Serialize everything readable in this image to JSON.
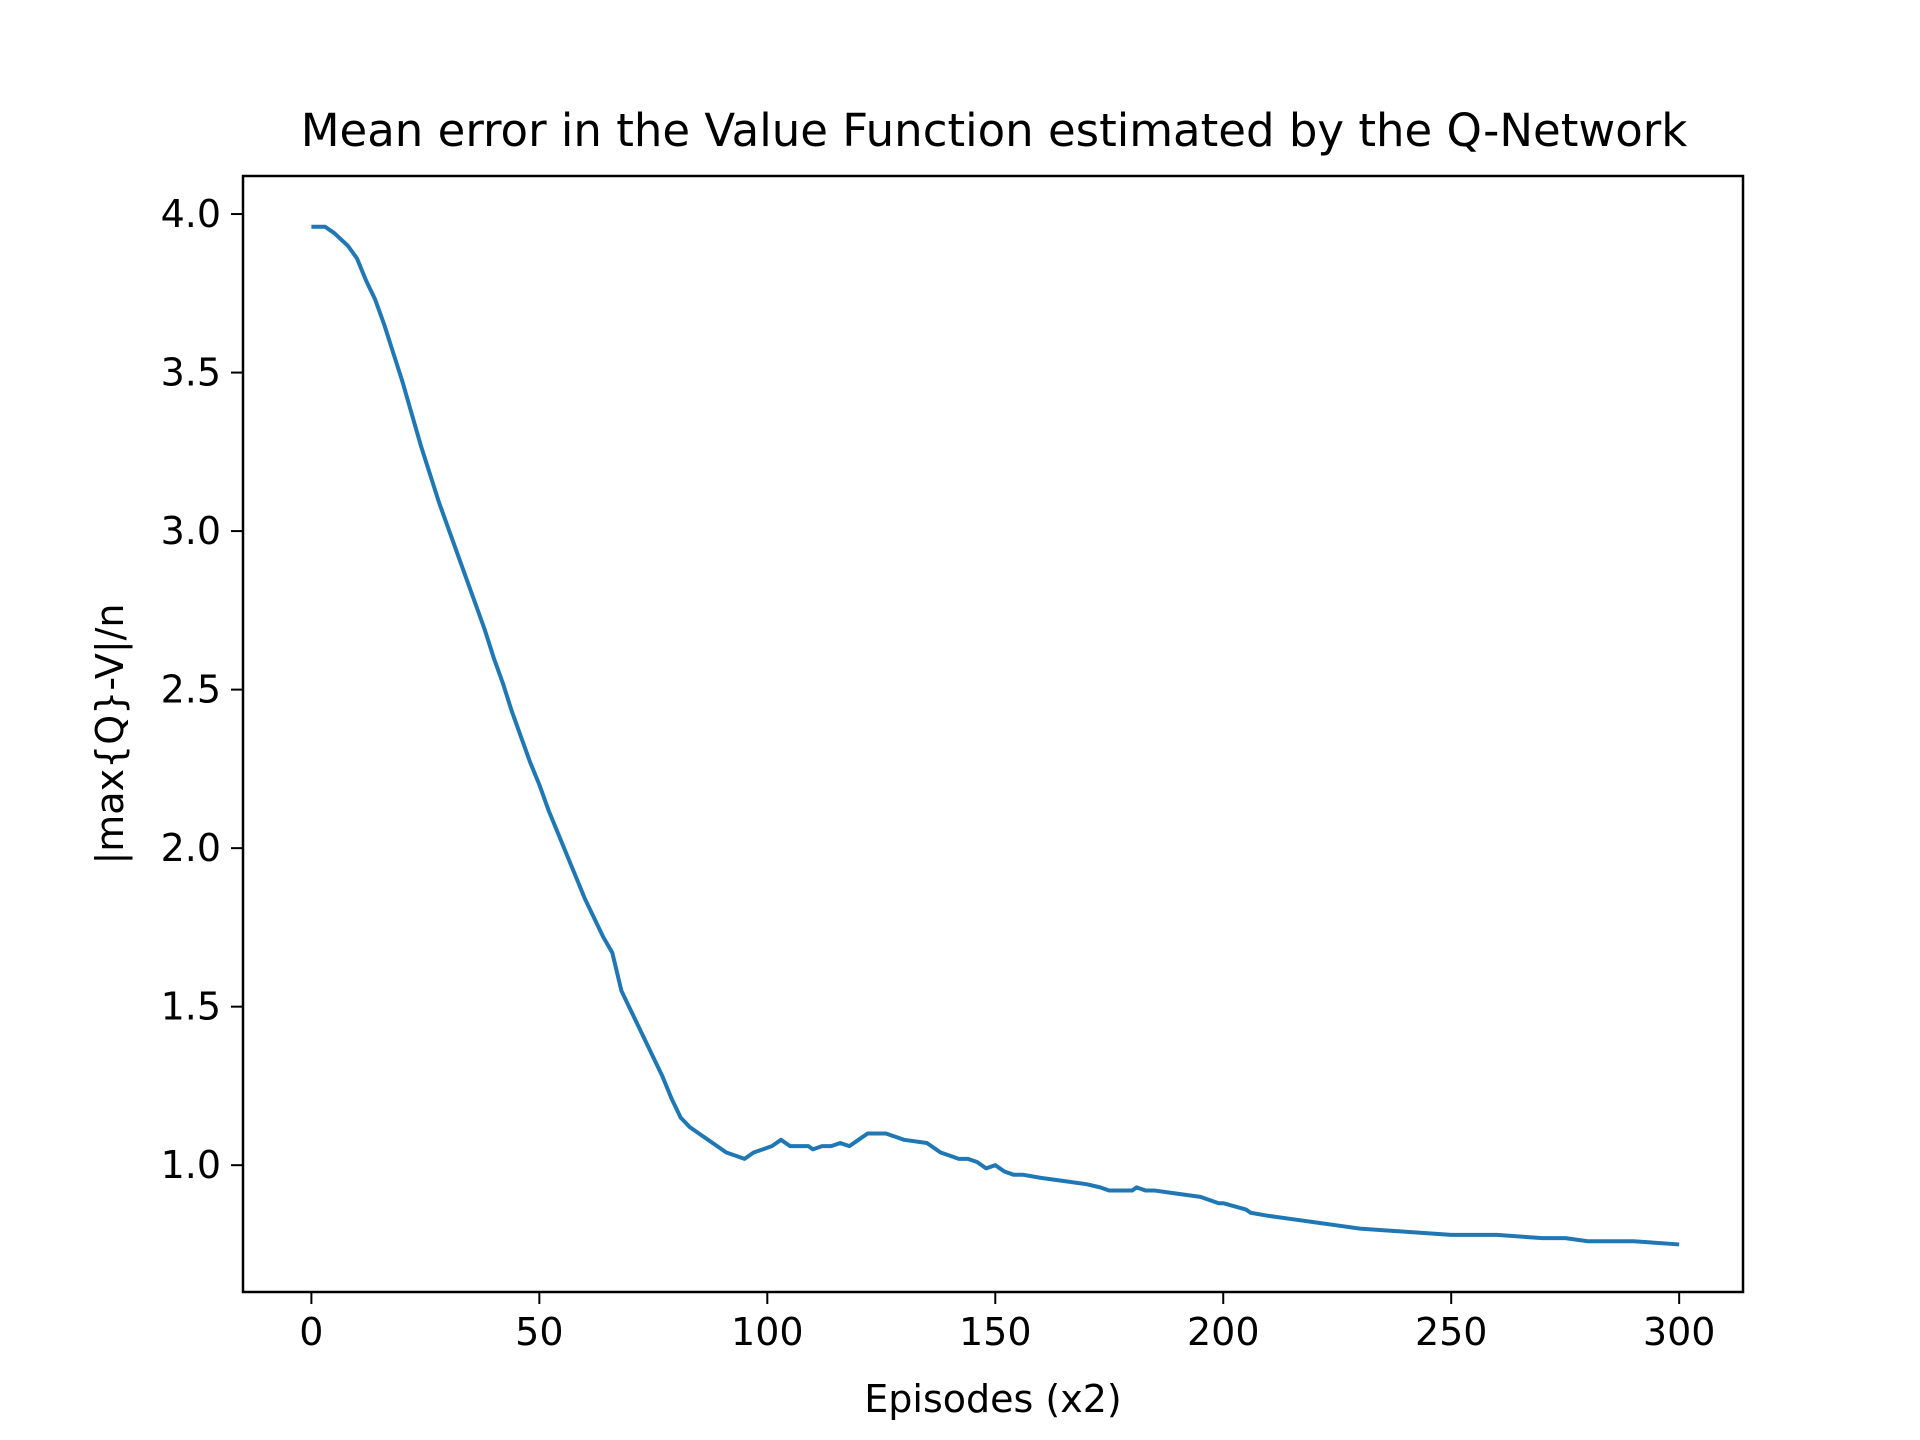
{
  "chart_data": {
    "type": "line",
    "title": "Mean error in the Value Function estimated by the Q-Network",
    "xlabel": "Episodes (x2)",
    "ylabel": "|max{Q}-V|/n",
    "xlim": [
      -15,
      314
    ],
    "ylim": [
      0.6,
      4.12
    ],
    "xticks": [
      0,
      50,
      100,
      150,
      200,
      250,
      300
    ],
    "xtick_labels": [
      "0",
      "50",
      "100",
      "150",
      "200",
      "250",
      "300"
    ],
    "yticks": [
      1.0,
      1.5,
      2.0,
      2.5,
      3.0,
      3.5,
      4.0
    ],
    "ytick_labels": [
      "1.0",
      "1.5",
      "2.0",
      "2.5",
      "3.0",
      "3.5",
      "4.0"
    ],
    "grid": false,
    "legend": null,
    "series": [
      {
        "color": "#1f77b4",
        "x": [
          0,
          3,
          5,
          8,
          10,
          12,
          14,
          16,
          18,
          20,
          22,
          24,
          26,
          28,
          30,
          32,
          34,
          36,
          38,
          40,
          42,
          44,
          46,
          48,
          50,
          52,
          54,
          56,
          58,
          60,
          62,
          64,
          66,
          68,
          70,
          72,
          73,
          75,
          77,
          79,
          81,
          83,
          85,
          87,
          89,
          91,
          93,
          95,
          97,
          99,
          101,
          103,
          105,
          107,
          109,
          110,
          112,
          114,
          116,
          118,
          120,
          122,
          124,
          126,
          128,
          130,
          135,
          138,
          140,
          142,
          144,
          146,
          148,
          150,
          152,
          154,
          156,
          160,
          165,
          170,
          173,
          175,
          180,
          181,
          183,
          185,
          190,
          195,
          199,
          200,
          205,
          206,
          210,
          215,
          220,
          225,
          230,
          240,
          250,
          260,
          270,
          275,
          280,
          285,
          290,
          300
        ],
        "y": [
          3.96,
          3.96,
          3.94,
          3.9,
          3.86,
          3.79,
          3.73,
          3.65,
          3.56,
          3.47,
          3.37,
          3.27,
          3.18,
          3.09,
          3.01,
          2.93,
          2.85,
          2.77,
          2.69,
          2.6,
          2.52,
          2.43,
          2.35,
          2.27,
          2.2,
          2.12,
          2.05,
          1.98,
          1.91,
          1.84,
          1.78,
          1.72,
          1.67,
          1.55,
          1.49,
          1.43,
          1.4,
          1.34,
          1.28,
          1.21,
          1.15,
          1.12,
          1.1,
          1.08,
          1.06,
          1.04,
          1.03,
          1.02,
          1.04,
          1.05,
          1.06,
          1.08,
          1.06,
          1.06,
          1.06,
          1.05,
          1.06,
          1.06,
          1.07,
          1.06,
          1.08,
          1.1,
          1.1,
          1.1,
          1.09,
          1.08,
          1.07,
          1.04,
          1.03,
          1.02,
          1.02,
          1.01,
          0.99,
          1.0,
          0.98,
          0.97,
          0.97,
          0.96,
          0.95,
          0.94,
          0.93,
          0.92,
          0.92,
          0.93,
          0.92,
          0.92,
          0.91,
          0.9,
          0.88,
          0.88,
          0.86,
          0.85,
          0.84,
          0.83,
          0.82,
          0.81,
          0.8,
          0.79,
          0.78,
          0.78,
          0.77,
          0.77,
          0.76,
          0.76,
          0.76,
          0.75
        ]
      }
    ]
  }
}
